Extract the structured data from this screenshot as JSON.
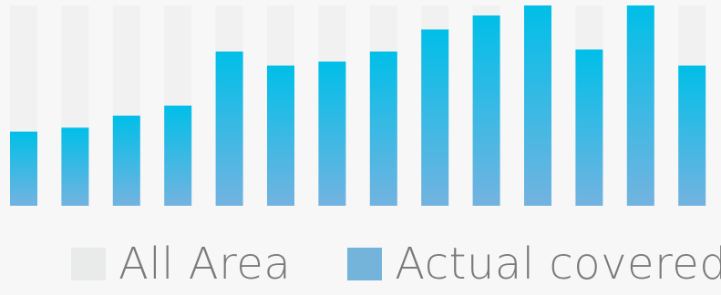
{
  "chart_data": {
    "type": "bar",
    "categories": [
      "",
      "",
      "",
      "",
      "",
      "",
      "",
      "",
      "",
      "",
      "",
      "",
      "",
      ""
    ],
    "series": [
      {
        "name": "All Area",
        "values": [
          100,
          100,
          100,
          100,
          100,
          100,
          100,
          100,
          100,
          100,
          100,
          100,
          100,
          100
        ]
      },
      {
        "name": "Actual covered",
        "values": [
          37,
          39,
          45,
          50,
          77,
          70,
          72,
          77,
          88,
          95,
          100,
          78,
          100,
          70
        ]
      }
    ],
    "ylim": [
      0,
      100
    ],
    "grid": false,
    "legend": "bottom",
    "colors": {
      "all_area": "#f1f1f1",
      "actual_top": "#00bfe8",
      "actual_bottom": "#73b3e0",
      "legend_all_area": "#e8ebea",
      "legend_actual": "#74b4db"
    }
  }
}
